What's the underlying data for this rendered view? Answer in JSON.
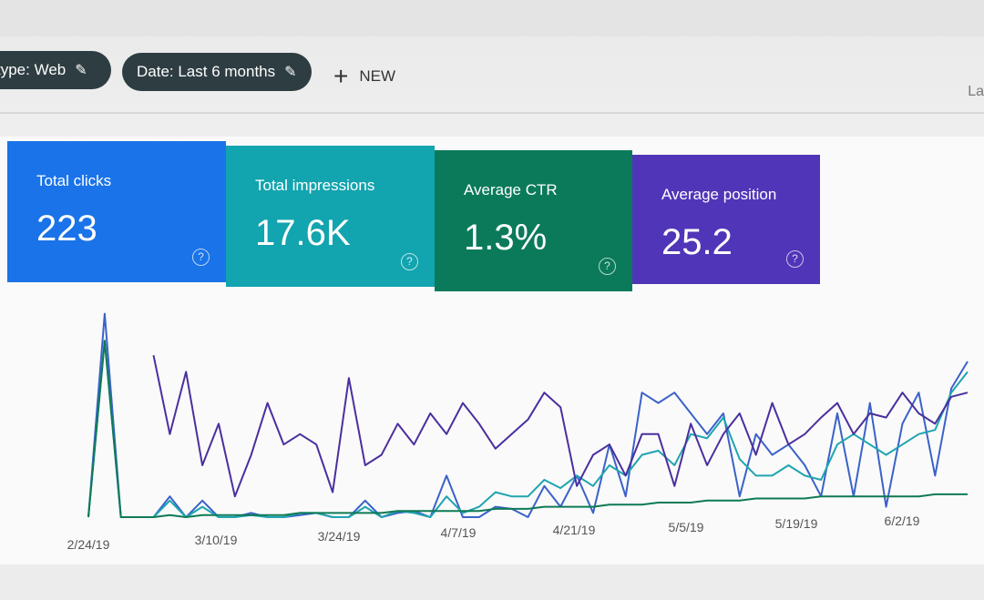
{
  "filters": [
    {
      "label": "type: Web",
      "icon": "pencil-icon"
    },
    {
      "label": "Date: Last 6 months",
      "icon": "pencil-icon"
    }
  ],
  "new_button": {
    "label": "NEW",
    "icon": "plus-icon"
  },
  "cut_text": "La",
  "metrics": [
    {
      "label": "Total clicks",
      "value": "223",
      "color": "#1a73e8"
    },
    {
      "label": "Total impressions",
      "value": "17.6K",
      "color": "#12a4af"
    },
    {
      "label": "Average CTR",
      "value": "1.3%",
      "color": "#0b7a5a"
    },
    {
      "label": "Average position",
      "value": "25.2",
      "color": "#5135b8"
    }
  ],
  "help_icon": "?",
  "chart_data": {
    "type": "line",
    "x_ticks": [
      "2/24/19",
      "3/10/19",
      "3/24/19",
      "4/7/19",
      "4/21/19",
      "5/5/19",
      "5/19/19",
      "6/2/19"
    ],
    "grid": false,
    "series": [
      {
        "color": "#3b62c9",
        "values": [
          0,
          98,
          0,
          0,
          0,
          10,
          0,
          8,
          0,
          0,
          2,
          0,
          0,
          1,
          2,
          0,
          0,
          8,
          0,
          2,
          3,
          0,
          20,
          0,
          0,
          5,
          4,
          0,
          15,
          5,
          20,
          2,
          35,
          10,
          60,
          55,
          60,
          50,
          40,
          50,
          10,
          40,
          30,
          35,
          25,
          10,
          50,
          10,
          55,
          5,
          45,
          60,
          20,
          62,
          75
        ]
      },
      {
        "color": "#1fa5b0",
        "values": [
          0,
          85,
          0,
          0,
          0,
          8,
          0,
          5,
          0,
          0,
          1,
          0,
          0,
          2,
          2,
          0,
          0,
          5,
          0,
          3,
          2,
          0,
          10,
          2,
          5,
          12,
          10,
          10,
          18,
          14,
          20,
          15,
          25,
          20,
          30,
          32,
          25,
          40,
          38,
          48,
          28,
          20,
          20,
          25,
          20,
          18,
          35,
          40,
          35,
          30,
          35,
          40,
          42,
          60,
          70
        ]
      },
      {
        "color": "#0e7a55",
        "values": [
          0,
          85,
          0,
          0,
          0,
          1,
          0,
          1,
          1,
          1,
          1,
          1,
          1,
          2,
          2,
          2,
          2,
          2,
          2,
          3,
          3,
          3,
          3,
          3,
          3,
          4,
          4,
          4,
          5,
          5,
          5,
          5,
          6,
          6,
          6,
          7,
          7,
          7,
          8,
          8,
          8,
          9,
          9,
          9,
          9,
          10,
          10,
          10,
          10,
          10,
          10,
          10,
          11,
          11,
          11
        ]
      },
      {
        "color": "#4b2f9e",
        "values": [
          null,
          null,
          null,
          null,
          78,
          40,
          70,
          25,
          45,
          10,
          30,
          55,
          35,
          40,
          35,
          12,
          67,
          25,
          30,
          45,
          35,
          50,
          40,
          55,
          45,
          33,
          40,
          47,
          60,
          53,
          15,
          30,
          35,
          20,
          40,
          40,
          15,
          45,
          25,
          40,
          50,
          30,
          55,
          35,
          40,
          48,
          55,
          40,
          50,
          48,
          60,
          50,
          45,
          58,
          60
        ]
      }
    ]
  }
}
